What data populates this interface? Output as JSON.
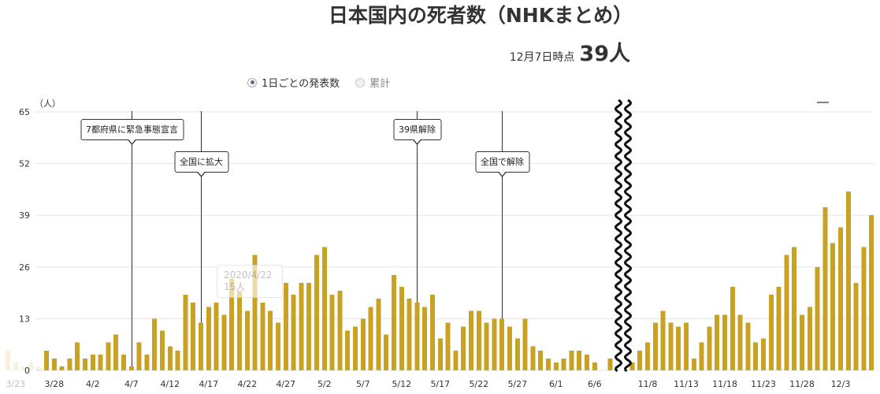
{
  "summary": {
    "as_of": "12月7日時点",
    "latest_value": "39人"
  },
  "view_toggle": {
    "options": [
      {
        "label": "1日ごとの発表数",
        "selected": true
      },
      {
        "label": "累計",
        "selected": false
      }
    ]
  },
  "tooltip": {
    "date": "2020/4/22",
    "value": "15人"
  },
  "annotations": [
    {
      "label": "7都府県に緊急事態宣言",
      "date": "4/7"
    },
    {
      "label": "全国に拡大",
      "date": "4/16"
    },
    {
      "label": "39県解除",
      "date": "5/14"
    },
    {
      "label": "全国で解除",
      "date": "5/25"
    }
  ],
  "colors": {
    "bar": "#c9a224",
    "annotation_line": "#1d2c6b",
    "gridline": "#e6e6e6",
    "radio_selected": "#5b6b8c"
  },
  "chart_data": {
    "type": "bar",
    "title": "日本国内の死者数（NHKまとめ）",
    "xlabel": "",
    "ylabel": "（人）",
    "ylim": [
      0,
      65
    ],
    "yticks": [
      0,
      13,
      26,
      39,
      52,
      65
    ],
    "grid": true,
    "axis_break": true,
    "segments": [
      {
        "categories": [
          "3/22",
          "3/23",
          "3/24",
          "3/25",
          "3/26",
          "3/27",
          "3/28",
          "3/29",
          "3/30",
          "3/31",
          "4/1",
          "4/2",
          "4/3",
          "4/4",
          "4/5",
          "4/6",
          "4/7",
          "4/8",
          "4/9",
          "4/10",
          "4/11",
          "4/12",
          "4/13",
          "4/14",
          "4/15",
          "4/16",
          "4/17",
          "4/18",
          "4/19",
          "4/20",
          "4/21",
          "4/22",
          "4/23",
          "4/24",
          "4/25",
          "4/26",
          "4/27",
          "4/28",
          "4/29",
          "4/30",
          "5/1",
          "5/2",
          "5/3",
          "5/4",
          "5/5",
          "5/6",
          "5/7",
          "5/8",
          "5/9",
          "5/10",
          "5/11",
          "5/12",
          "5/13",
          "5/14",
          "5/15",
          "5/16",
          "5/17",
          "5/18",
          "5/19",
          "5/20",
          "5/21",
          "5/22",
          "5/23",
          "5/24",
          "5/25",
          "5/26",
          "5/27",
          "5/28",
          "5/29",
          "5/30",
          "5/31",
          "6/1",
          "6/2",
          "6/3",
          "6/4",
          "6/5",
          "6/6",
          "6/7",
          "6/8",
          "6/9"
        ],
        "values": [
          5,
          2,
          1,
          2,
          1,
          5,
          3,
          1,
          3,
          7,
          3,
          4,
          4,
          7,
          9,
          4,
          1,
          7,
          4,
          13,
          10,
          6,
          5,
          19,
          17,
          12,
          16,
          17,
          14,
          23,
          20,
          15,
          29,
          17,
          15,
          12,
          22,
          19,
          22,
          22,
          29,
          31,
          19,
          20,
          10,
          11,
          13,
          16,
          18,
          9,
          24,
          21,
          18,
          17,
          16,
          19,
          8,
          12,
          5,
          11,
          15,
          15,
          12,
          13,
          13,
          11,
          8,
          13,
          6,
          5,
          3,
          2,
          3,
          5,
          5,
          4,
          2,
          0,
          3,
          1
        ]
      },
      {
        "categories": [
          "11/6",
          "11/7",
          "11/8",
          "11/9",
          "11/10",
          "11/11",
          "11/12",
          "11/13",
          "11/14",
          "11/15",
          "11/16",
          "11/17",
          "11/18",
          "11/19",
          "11/20",
          "11/21",
          "11/22",
          "11/23",
          "11/24",
          "11/25",
          "11/26",
          "11/27",
          "11/28",
          "11/29",
          "11/30",
          "12/1",
          "12/2",
          "12/3",
          "12/4",
          "12/5",
          "12/6",
          "12/7"
        ],
        "values": [
          2,
          5,
          7,
          12,
          15,
          12,
          11,
          12,
          3,
          7,
          11,
          14,
          14,
          21,
          14,
          12,
          7,
          8,
          19,
          21,
          29,
          31,
          14,
          16,
          26,
          41,
          32,
          36,
          45,
          22,
          31,
          39
        ]
      }
    ],
    "xtick_labels": [
      "3/23",
      "3/28",
      "4/2",
      "4/7",
      "4/12",
      "4/17",
      "4/22",
      "4/27",
      "5/2",
      "5/7",
      "5/12",
      "5/17",
      "5/22",
      "5/27",
      "6/1",
      "6/6",
      "11/8",
      "11/13",
      "11/18",
      "11/23",
      "11/28",
      "12/3"
    ]
  }
}
